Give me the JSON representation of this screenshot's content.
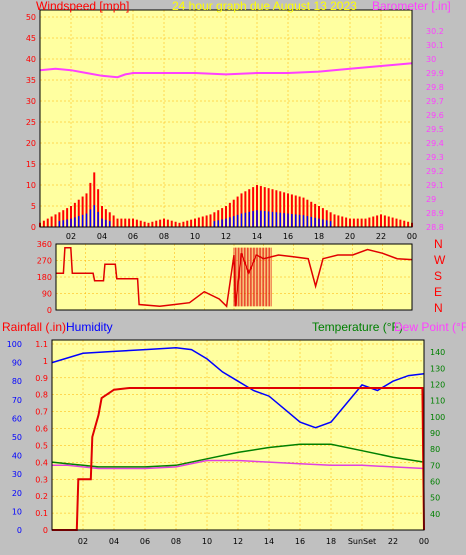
{
  "header": {
    "left_label": "Windspeed [mph]",
    "center_label": "24 hour graph due   August 13 2023",
    "right_label": "Barometer [.in]"
  },
  "middle": {
    "compass_labels": [
      "N",
      "W",
      "S",
      "E",
      "N"
    ]
  },
  "bottom_header": {
    "rainfall_label": "Rainfall (.in)",
    "humidity_label": "Humidity",
    "temperature_label": "Temperature (°F)",
    "dewpoint_label": "Dew Point (°F)"
  },
  "colors": {
    "plot_bg": "#ffffa0",
    "wind": "#ff0000",
    "gust": "#ff0000",
    "wind_blue": "#0000ff",
    "wind_green": "#008000",
    "barometer": "#ff40ff",
    "direction": "#e00000",
    "rain": "#e00000",
    "humidity": "#0000ff",
    "temperature": "#008000",
    "dewpoint": "#e040e0",
    "grid": "#ffb000",
    "title_yellow": "#ffff00"
  },
  "chart_data": [
    {
      "type": "line",
      "name": "wind-baro",
      "x_tick_labels": [
        "02",
        "04",
        "06",
        "08",
        "10",
        "12",
        "14",
        "16",
        "18",
        "20",
        "22",
        "00"
      ],
      "left_axis": {
        "label": "Windspeed [mph]",
        "ylim": [
          0,
          50
        ],
        "ticks": [
          "0",
          "5",
          "10",
          "15",
          "20",
          "25",
          "30",
          "35",
          "40",
          "45",
          "50"
        ]
      },
      "right_axis": {
        "label": "Barometer [.in]",
        "ylim": [
          28.8,
          30.3
        ],
        "ticks": [
          "28.8",
          "28.9",
          "29",
          "29.1",
          "29.2",
          "29.3",
          "29.4",
          "29.5",
          "29.6",
          "29.7",
          "29.8",
          "29.9",
          "30",
          "30.1",
          "30.2"
        ]
      },
      "series": [
        {
          "name": "Barometer",
          "axis": "right",
          "x": [
            0,
            1,
            2,
            3,
            4,
            5,
            5.5,
            6,
            8,
            10,
            12,
            14,
            16,
            18,
            20,
            22,
            24
          ],
          "values": [
            29.92,
            29.93,
            29.92,
            29.9,
            29.88,
            29.87,
            29.89,
            29.9,
            29.9,
            29.9,
            29.89,
            29.9,
            29.9,
            29.91,
            29.93,
            29.95,
            29.97
          ]
        },
        {
          "name": "Windspeed",
          "axis": "left",
          "x": [
            0,
            1,
            2,
            3,
            3.5,
            4,
            5,
            6,
            7,
            8,
            9,
            10,
            11,
            12,
            13,
            14,
            15,
            16,
            17,
            18,
            19,
            20,
            21,
            22,
            23,
            24
          ],
          "values": [
            1,
            3,
            5,
            8,
            13,
            5,
            2,
            2,
            1,
            2,
            1,
            2,
            3,
            5,
            8,
            10,
            9,
            8,
            7,
            5,
            3,
            2,
            2,
            3,
            2,
            1
          ]
        }
      ]
    },
    {
      "type": "line",
      "name": "direction",
      "x_tick_labels": [],
      "ylim": [
        0,
        360
      ],
      "ticks": [
        "0",
        "90",
        "180",
        "270",
        "360"
      ],
      "series": [
        {
          "name": "Wind direction",
          "x": [
            0,
            0.5,
            0.6,
            1.0,
            1.1,
            2.5,
            2.6,
            3.2,
            3.3,
            4.0,
            4.1,
            5.5,
            5.6,
            7,
            8,
            9,
            10,
            11,
            11.5,
            12,
            12.1,
            12.5,
            13,
            13.5,
            14,
            15,
            16,
            17,
            17.5,
            18,
            19,
            20,
            21,
            22,
            23,
            24
          ],
          "values": [
            200,
            200,
            340,
            340,
            200,
            200,
            160,
            160,
            250,
            250,
            170,
            170,
            30,
            20,
            30,
            40,
            100,
            60,
            20,
            300,
            20,
            310,
            200,
            300,
            280,
            300,
            290,
            280,
            130,
            280,
            300,
            300,
            330,
            310,
            280,
            275
          ]
        }
      ]
    },
    {
      "type": "line",
      "name": "rain-hum-temp",
      "x_tick_labels": [
        "02",
        "04",
        "06",
        "08",
        "10",
        "12",
        "14",
        "16",
        "18",
        "SunSet",
        "22",
        "00"
      ],
      "rain_axis": {
        "label": "Rainfall (.in)",
        "ylim": [
          0,
          1.1
        ],
        "ticks": [
          "0",
          "0.1",
          "0.2",
          "0.3",
          "0.4",
          "0.5",
          "0.6",
          "0.7",
          "0.8",
          "0.9",
          "1",
          "1.1"
        ]
      },
      "humidity_axis": {
        "ylim": [
          0,
          100
        ],
        "ticks": [
          "0",
          "10",
          "20",
          "30",
          "40",
          "50",
          "60",
          "70",
          "80",
          "90",
          "100"
        ]
      },
      "temp_axis": {
        "label": "Temperature (°F)",
        "ylim": [
          30,
          145
        ],
        "ticks": [
          "40",
          "50",
          "60",
          "70",
          "80",
          "90",
          "100",
          "110",
          "120",
          "130",
          "140"
        ]
      },
      "series": [
        {
          "name": "Humidity",
          "x": [
            0,
            2,
            4,
            6,
            8,
            9,
            10,
            11,
            12,
            13,
            14,
            15,
            16,
            17,
            18,
            19,
            20,
            21,
            22,
            23,
            24
          ],
          "values": [
            90,
            95,
            96,
            97,
            98,
            97,
            92,
            85,
            80,
            75,
            72,
            65,
            58,
            55,
            58,
            68,
            78,
            75,
            80,
            83,
            84
          ]
        },
        {
          "name": "Rainfall",
          "x": [
            0,
            1.6,
            1.7,
            2.5,
            2.6,
            3.0,
            3.2,
            4,
            5,
            6,
            23.9,
            24
          ],
          "values": [
            0,
            0,
            0.3,
            0.3,
            0.55,
            0.68,
            0.78,
            0.83,
            0.84,
            0.84,
            0.84,
            0
          ]
        },
        {
          "name": "Temperature",
          "x": [
            0,
            1,
            2,
            3,
            4,
            6,
            8,
            10,
            12,
            14,
            16,
            18,
            20,
            22,
            24
          ],
          "values": [
            72,
            71,
            70,
            69,
            69,
            69,
            70,
            74,
            78,
            81,
            83,
            83,
            79,
            75,
            72
          ]
        },
        {
          "name": "Dew Point",
          "x": [
            0,
            1,
            2,
            3,
            4,
            6,
            8,
            10,
            12,
            14,
            16,
            18,
            20,
            22,
            24
          ],
          "values": [
            70,
            70,
            69,
            68,
            68,
            68,
            69,
            73,
            73,
            72,
            71,
            70,
            70,
            69,
            68
          ]
        }
      ]
    }
  ]
}
